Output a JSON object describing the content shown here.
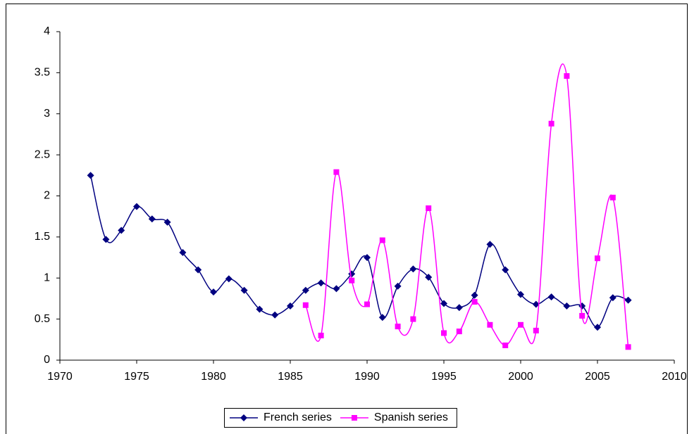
{
  "chart_data": {
    "type": "line",
    "smooth": true,
    "legend": "bottom",
    "xlim": [
      1970,
      2010
    ],
    "xticks": [
      1970,
      1975,
      1980,
      1985,
      1990,
      1995,
      2000,
      2005,
      2010
    ],
    "ylim": [
      0,
      4
    ],
    "yticks": [
      0,
      0.5,
      1,
      1.5,
      2,
      2.5,
      3,
      3.5,
      4
    ],
    "grid": false,
    "series": [
      {
        "name": "French series",
        "color": "#000080",
        "marker": "diamond",
        "x": [
          1972,
          1973,
          1974,
          1975,
          1976,
          1977,
          1978,
          1979,
          1980,
          1981,
          1982,
          1983,
          1984,
          1985,
          1986,
          1987,
          1988,
          1989,
          1990,
          1991,
          1992,
          1993,
          1994,
          1995,
          1996,
          1997,
          1998,
          1999,
          2000,
          2001,
          2002,
          2003,
          2004,
          2005,
          2006,
          2007
        ],
        "values": [
          2.25,
          1.47,
          1.58,
          1.87,
          1.72,
          1.68,
          1.31,
          1.1,
          0.83,
          0.99,
          0.85,
          0.62,
          0.55,
          0.66,
          0.85,
          0.94,
          0.87,
          1.05,
          1.25,
          0.52,
          0.9,
          1.11,
          1.01,
          0.69,
          0.64,
          0.79,
          1.41,
          1.1,
          0.8,
          0.68,
          0.77,
          0.66,
          0.66,
          0.4,
          0.76,
          0.73
        ]
      },
      {
        "name": "Spanish series",
        "color": "#ff00ff",
        "marker": "square",
        "x": [
          1986,
          1987,
          1988,
          1989,
          1990,
          1991,
          1992,
          1993,
          1994,
          1995,
          1996,
          1997,
          1998,
          1999,
          2000,
          2001,
          2002,
          2003,
          2004,
          2005,
          2006,
          2007
        ],
        "values": [
          0.67,
          0.3,
          2.29,
          0.97,
          0.68,
          1.46,
          0.41,
          0.5,
          1.85,
          0.33,
          0.35,
          0.71,
          0.43,
          0.18,
          0.43,
          0.36,
          2.88,
          3.46,
          0.54,
          1.24,
          1.98,
          0.16
        ]
      }
    ]
  }
}
